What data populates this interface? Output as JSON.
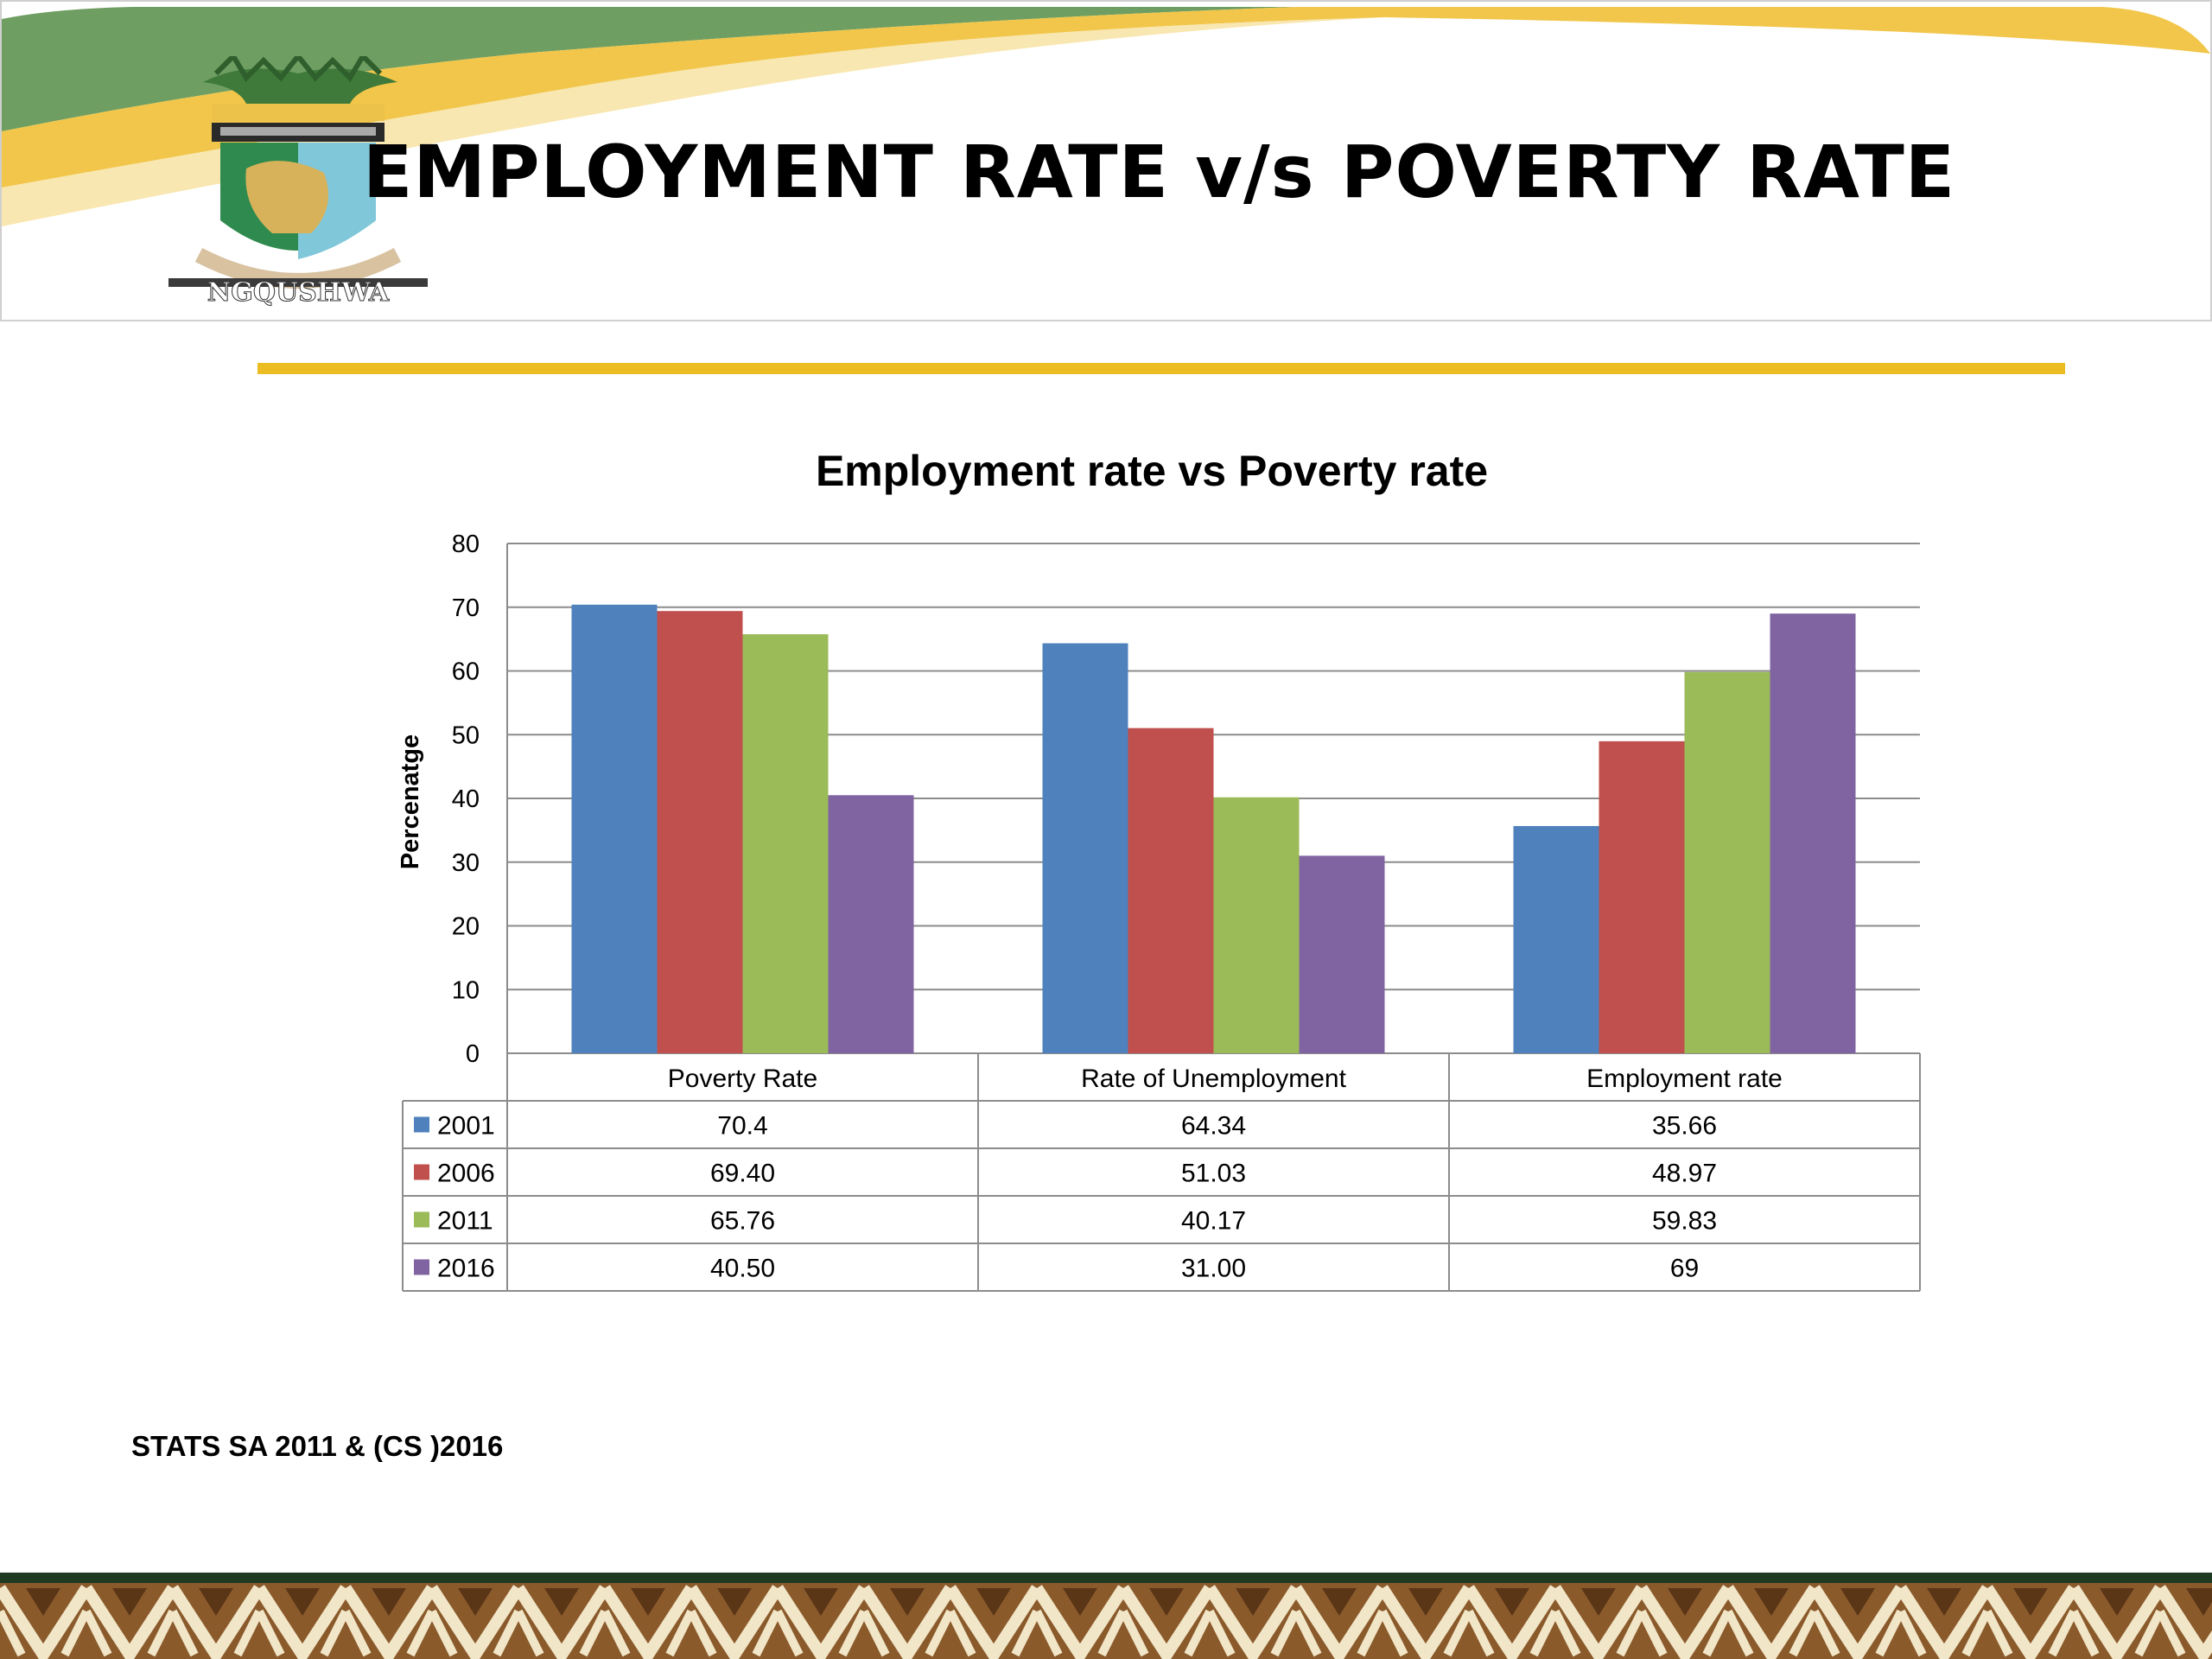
{
  "slide": {
    "title": "EMPLOYMENT RATE v/s POVERTY RATE",
    "logo_text": "NGQUSHWA",
    "source_note": "STATS SA 2011 & (CS )2016",
    "colors": {
      "accent_gold": "#ebbd22",
      "header_green": "#6f9e62",
      "header_yellow": "#f1c64a",
      "footer_brown": "#8a5a2b"
    }
  },
  "chart_data": {
    "type": "bar",
    "title": "Employment rate vs Poverty rate",
    "xlabel": "",
    "ylabel": "Percenatge",
    "ylim": [
      0,
      80
    ],
    "yticks": [
      0,
      10,
      20,
      30,
      40,
      50,
      60,
      70,
      80
    ],
    "grid": true,
    "legend": "data-table",
    "categories": [
      "Poverty Rate",
      "Rate of Unemployment",
      "Employment rate"
    ],
    "series": [
      {
        "name": "2001",
        "color": "#4f81bd",
        "values": [
          70.4,
          64.34,
          35.66
        ],
        "labels": [
          "70.4",
          "64.34",
          "35.66"
        ]
      },
      {
        "name": "2006",
        "color": "#c0504d",
        "values": [
          69.4,
          51.03,
          48.97
        ],
        "labels": [
          "69.40",
          "51.03",
          "48.97"
        ]
      },
      {
        "name": "2011",
        "color": "#9bbb59",
        "values": [
          65.76,
          40.17,
          59.83
        ],
        "labels": [
          "65.76",
          "40.17",
          "59.83"
        ]
      },
      {
        "name": "2016",
        "color": "#8064a2",
        "values": [
          40.5,
          31.0,
          69
        ],
        "labels": [
          "40.50",
          "31.00",
          "69"
        ]
      }
    ]
  }
}
